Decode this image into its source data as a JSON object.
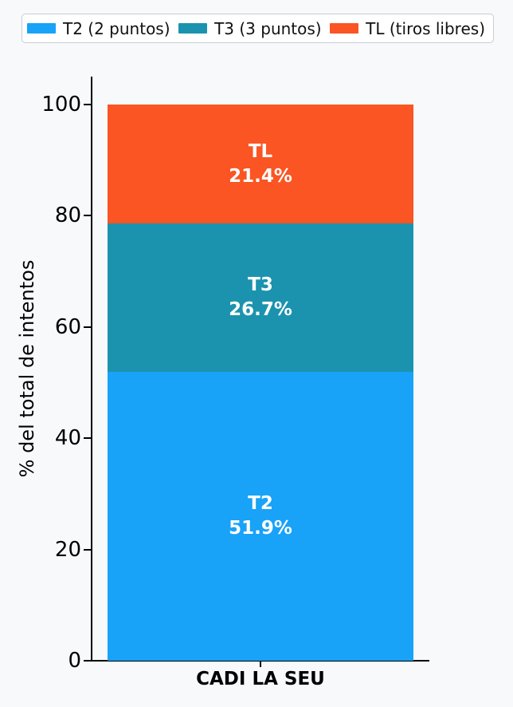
{
  "background_color": "#f8f9fb",
  "axis_color": "#000000",
  "legend": {
    "position": "top",
    "items": [
      {
        "label": "T2 (2 puntos)",
        "color": "#18A2F8"
      },
      {
        "label": "T3 (3 puntos)",
        "color": "#1B93AE"
      },
      {
        "label": "TL (tiros libres)",
        "color": "#FA5523"
      }
    ]
  },
  "chart_data": {
    "type": "bar",
    "stacked": true,
    "categories": [
      "CADI LA SEU"
    ],
    "series": [
      {
        "name": "T2",
        "legend_label": "T2 (2 puntos)",
        "value": 51.9,
        "bar_label_line1": "T2",
        "bar_label_line2": "51.9%",
        "color": "#18A2F8"
      },
      {
        "name": "T3",
        "legend_label": "T3 (3 puntos)",
        "value": 26.7,
        "bar_label_line1": "T3",
        "bar_label_line2": "26.7%",
        "color": "#1B93AE"
      },
      {
        "name": "TL",
        "legend_label": "TL (tiros libres)",
        "value": 21.4,
        "bar_label_line1": "TL",
        "bar_label_line2": "21.4%",
        "color": "#FA5523"
      }
    ],
    "title": "",
    "xlabel": "CADI LA SEU",
    "ylabel": "% del total de intentos",
    "yticks": [
      0,
      20,
      40,
      60,
      80,
      100
    ],
    "ylim": [
      0,
      100
    ],
    "grid": false,
    "legend_position": "top",
    "bar_label_text_color": "#ffffff"
  }
}
